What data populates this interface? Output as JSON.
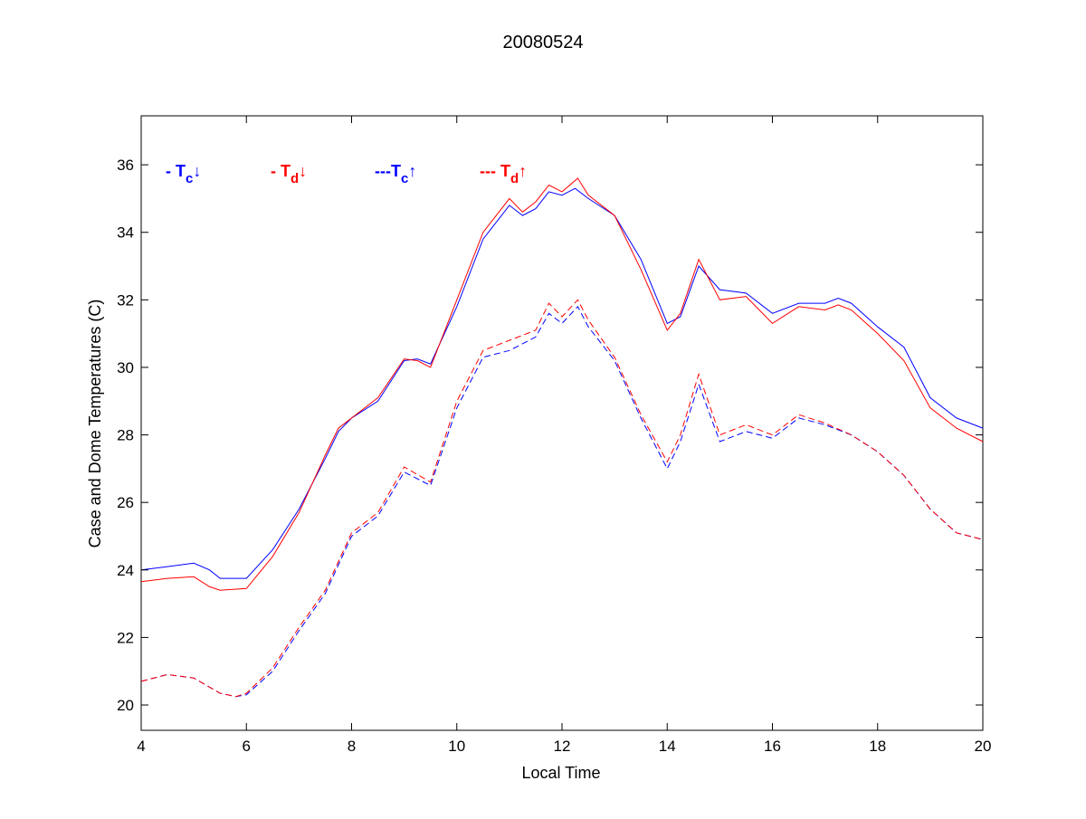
{
  "chart_data": {
    "type": "line",
    "title": "20080524",
    "xlabel": "Local Time",
    "ylabel": "Case and Dome Temperatures (C)",
    "xlim": [
      4,
      20
    ],
    "ylim": [
      19.25,
      37.45
    ],
    "xticks": [
      4,
      6,
      8,
      10,
      12,
      14,
      16,
      18,
      20
    ],
    "yticks": [
      20,
      22,
      24,
      26,
      28,
      30,
      32,
      34,
      36
    ],
    "grid": false,
    "legend_placement": "top-left",
    "legend": [
      {
        "prefix": "- ",
        "main": "T",
        "sub": "c",
        "arrow": "↓",
        "color": "#0000ff"
      },
      {
        "prefix": "- ",
        "main": "T",
        "sub": "d",
        "arrow": "↓",
        "color": "#ff0000"
      },
      {
        "prefix": "---",
        "main": "T",
        "sub": "c",
        "arrow": "↑",
        "color": "#0000ff"
      },
      {
        "prefix": "--- ",
        "main": "T",
        "sub": "d",
        "arrow": "↑",
        "color": "#ff0000"
      }
    ],
    "series": [
      {
        "name": "Tc↓",
        "color": "#0000ff",
        "dash": false,
        "x": [
          4,
          4.5,
          5,
          5.3,
          5.5,
          6,
          6.5,
          7,
          7.5,
          7.75,
          8,
          8.5,
          9,
          9.25,
          9.5,
          10,
          10.5,
          11,
          11.25,
          11.5,
          11.75,
          12,
          12.25,
          12.5,
          13,
          13.5,
          14,
          14.25,
          14.6,
          15,
          15.5,
          16,
          16.5,
          17,
          17.25,
          17.5,
          18,
          18.5,
          19,
          19.5,
          20
        ],
        "y": [
          24.0,
          24.1,
          24.2,
          24.0,
          23.75,
          23.75,
          24.6,
          25.8,
          27.3,
          28.1,
          28.5,
          29.0,
          30.2,
          30.25,
          30.1,
          31.8,
          33.8,
          34.8,
          34.5,
          34.7,
          35.2,
          35.1,
          35.3,
          35.0,
          34.5,
          33.2,
          31.3,
          31.5,
          33.0,
          32.3,
          32.2,
          31.6,
          31.9,
          31.9,
          32.05,
          31.9,
          31.2,
          30.6,
          29.1,
          28.5,
          28.2
        ]
      },
      {
        "name": "Td↓",
        "color": "#ff0000",
        "dash": false,
        "x": [
          4,
          4.5,
          5,
          5.3,
          5.5,
          6,
          6.5,
          7,
          7.5,
          7.75,
          8,
          8.5,
          9,
          9.25,
          9.5,
          10,
          10.5,
          11,
          11.25,
          11.5,
          11.75,
          12,
          12.3,
          12.5,
          13,
          13.5,
          14,
          14.25,
          14.6,
          15,
          15.5,
          16,
          16.5,
          17,
          17.25,
          17.5,
          18,
          18.5,
          19,
          19.5,
          20
        ],
        "y": [
          23.65,
          23.75,
          23.8,
          23.5,
          23.4,
          23.45,
          24.4,
          25.7,
          27.4,
          28.2,
          28.5,
          29.1,
          30.25,
          30.2,
          30.0,
          32.0,
          34.0,
          35.0,
          34.6,
          34.9,
          35.4,
          35.2,
          35.6,
          35.1,
          34.5,
          32.9,
          31.1,
          31.6,
          33.2,
          32.0,
          32.1,
          31.3,
          31.8,
          31.7,
          31.85,
          31.7,
          31.0,
          30.2,
          28.8,
          28.2,
          27.8
        ]
      },
      {
        "name": "Tc↑",
        "color": "#0000ff",
        "dash": true,
        "x": [
          4,
          4.5,
          5,
          5.5,
          5.8,
          6,
          6.5,
          7,
          7.5,
          8,
          8.5,
          9,
          9.5,
          10,
          10.5,
          11,
          11.5,
          11.75,
          12,
          12.3,
          12.5,
          13,
          13.5,
          14,
          14.25,
          14.6,
          15,
          15.5,
          16,
          16.5,
          17,
          17.5,
          18,
          18.5,
          19,
          19.5,
          20
        ],
        "y": [
          20.7,
          20.9,
          20.8,
          20.35,
          20.25,
          20.3,
          21.0,
          22.2,
          23.3,
          25.0,
          25.6,
          26.9,
          26.5,
          28.8,
          30.3,
          30.5,
          30.9,
          31.6,
          31.3,
          31.8,
          31.2,
          30.2,
          28.5,
          27.0,
          27.8,
          29.5,
          27.8,
          28.1,
          27.9,
          28.5,
          28.3,
          28.0,
          27.5,
          26.8,
          25.8,
          25.1,
          24.9
        ]
      },
      {
        "name": "Td↑",
        "color": "#ff0000",
        "dash": true,
        "x": [
          4,
          4.5,
          5,
          5.5,
          5.8,
          6,
          6.5,
          7,
          7.5,
          8,
          8.5,
          9,
          9.5,
          10,
          10.5,
          11,
          11.5,
          11.75,
          12,
          12.3,
          12.5,
          13,
          13.5,
          14,
          14.25,
          14.6,
          15,
          15.5,
          16,
          16.5,
          17,
          17.5,
          18,
          18.5,
          19,
          19.5,
          20
        ],
        "y": [
          20.7,
          20.9,
          20.8,
          20.35,
          20.25,
          20.35,
          21.1,
          22.3,
          23.4,
          25.1,
          25.7,
          27.05,
          26.6,
          29.0,
          30.5,
          30.8,
          31.1,
          31.9,
          31.5,
          32.0,
          31.4,
          30.3,
          28.6,
          27.2,
          28.0,
          29.8,
          28.0,
          28.3,
          28.0,
          28.6,
          28.35,
          28.0,
          27.5,
          26.8,
          25.8,
          25.1,
          24.9
        ]
      }
    ]
  }
}
